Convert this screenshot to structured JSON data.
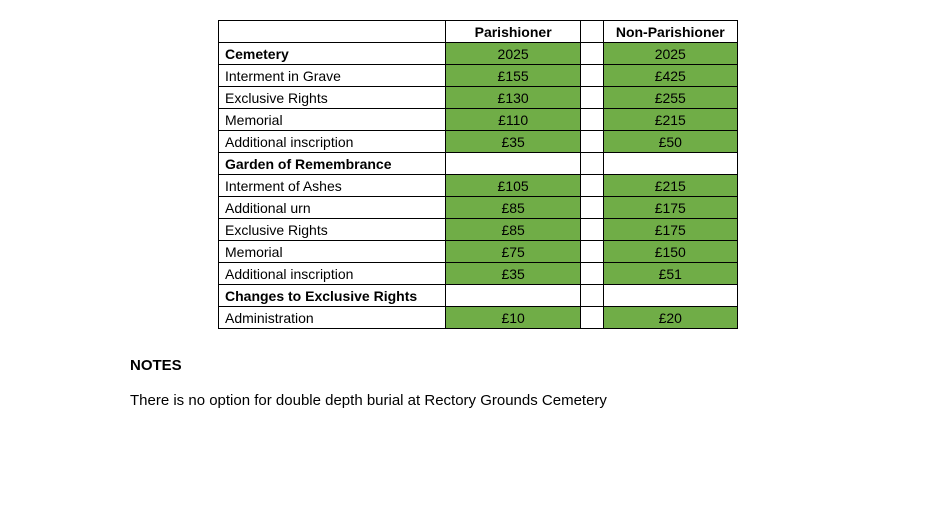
{
  "table": {
    "cell_bg_green": "#70ad47",
    "cell_bg_white": "#ffffff",
    "border_color": "#000000",
    "header": {
      "col1": "",
      "col2": "Parishioner",
      "col3": "Non-Parishioner"
    },
    "rows": [
      {
        "label": "Cemetery",
        "bold": true,
        "p": "2025",
        "np": "2025",
        "filled": true
      },
      {
        "label": "Interment in Grave",
        "bold": false,
        "p": "£155",
        "np": "£425",
        "filled": true
      },
      {
        "label": "Exclusive Rights",
        "bold": false,
        "p": "£130",
        "np": "£255",
        "filled": true
      },
      {
        "label": "Memorial",
        "bold": false,
        "p": "£110",
        "np": "£215",
        "filled": true
      },
      {
        "label": "Additional inscription",
        "bold": false,
        "p": "£35",
        "np": "£50",
        "filled": true
      },
      {
        "label": "Garden of Remembrance",
        "bold": true,
        "p": "",
        "np": "",
        "filled": false
      },
      {
        "label": "Interment of Ashes",
        "bold": false,
        "p": "£105",
        "np": "£215",
        "filled": true
      },
      {
        "label": "Additional urn",
        "bold": false,
        "p": "£85",
        "np": "£175",
        "filled": true
      },
      {
        "label": "Exclusive Rights",
        "bold": false,
        "p": "£85",
        "np": "£175",
        "filled": true
      },
      {
        "label": "Memorial",
        "bold": false,
        "p": "£75",
        "np": "£150",
        "filled": true
      },
      {
        "label": "Additional inscription",
        "bold": false,
        "p": "£35",
        "np": "£51",
        "filled": true
      },
      {
        "label": "Changes to Exclusive Rights",
        "bold": true,
        "p": "",
        "np": "",
        "filled": false
      },
      {
        "label": "Administration",
        "bold": false,
        "p": "£10",
        "np": "£20",
        "filled": true
      }
    ]
  },
  "notes": {
    "heading": "NOTES",
    "text": "There is no option for double depth burial at Rectory Grounds Cemetery"
  }
}
